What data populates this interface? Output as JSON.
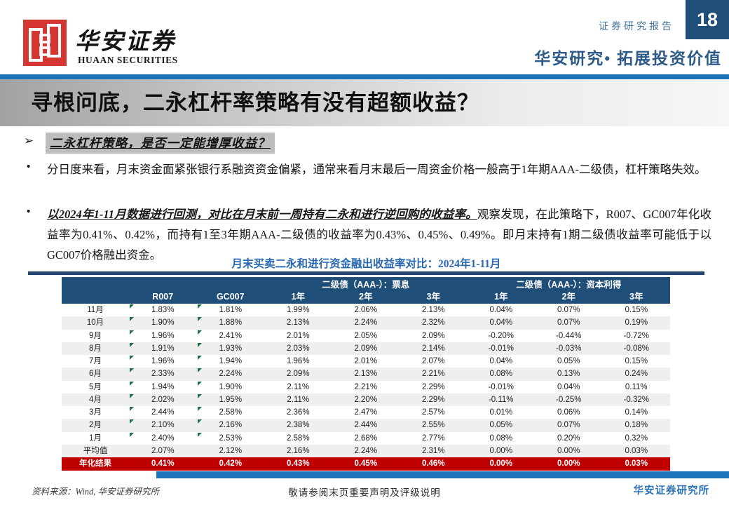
{
  "header": {
    "logo_cn": "华安证券",
    "logo_en": "HUAAN SECURITIES",
    "report_type": "证券研究报告",
    "page_number": "18",
    "slogan": "华安研究• 拓展投资价值"
  },
  "title": "寻根问底，二永杠杆率策略有没有超额收益？",
  "content": {
    "arrow": "➢",
    "bullet_dot": "•",
    "section_heading": "二永杠杆策略，是否一定能增厚收益？",
    "bullet1": "分日度来看，月末资金面紧张银行系融资资金偏紧，通常来看月末最后一周资金价格一般高于1年期AAA-二级债，杠杆策略失效。",
    "bullet2_emphasis": "以2024年1-11月数据进行回测，对比在月末前一周持有二永和进行逆回购的收益率。",
    "bullet2_rest": "观察发现，在此策略下，R007、GC007年化收益率为0.41%、0.42%，而持有1至3年期AAA-二级债的收益率为0.43%、0.45%、0.49%。即月末持有1期二级债收益率可能低于以GC007价格融出资金。"
  },
  "chart_title": "月末买卖二永和进行资金融出收益率对比：2024年1-11月",
  "table": {
    "group_headers": [
      "二级债（AAA-）：票息",
      "二级债（AAA-）：资本利得"
    ],
    "col_headers": [
      "",
      "R007",
      "GC007",
      "1年",
      "2年",
      "3年",
      "1年",
      "2年",
      "3年"
    ],
    "rows": [
      {
        "label": "11月",
        "values": [
          "1.83%",
          "1.81%",
          "1.99%",
          "2.06%",
          "2.13%",
          "0.04%",
          "0.07%",
          "0.15%"
        ]
      },
      {
        "label": "10月",
        "values": [
          "1.90%",
          "1.88%",
          "2.13%",
          "2.24%",
          "2.32%",
          "0.04%",
          "0.07%",
          "0.19%"
        ]
      },
      {
        "label": "9月",
        "values": [
          "1.96%",
          "2.41%",
          "2.01%",
          "2.05%",
          "2.09%",
          "-0.20%",
          "-0.44%",
          "-0.72%"
        ]
      },
      {
        "label": "8月",
        "values": [
          "1.91%",
          "1.93%",
          "2.03%",
          "2.09%",
          "2.14%",
          "-0.01%",
          "-0.03%",
          "-0.08%"
        ]
      },
      {
        "label": "7月",
        "values": [
          "1.96%",
          "1.94%",
          "1.96%",
          "2.01%",
          "2.07%",
          "0.04%",
          "0.05%",
          "0.15%"
        ]
      },
      {
        "label": "6月",
        "values": [
          "2.33%",
          "2.24%",
          "2.09%",
          "2.13%",
          "2.21%",
          "0.08%",
          "0.13%",
          "0.24%"
        ]
      },
      {
        "label": "5月",
        "values": [
          "1.94%",
          "1.90%",
          "2.11%",
          "2.21%",
          "2.29%",
          "-0.01%",
          "0.04%",
          "0.11%"
        ]
      },
      {
        "label": "4月",
        "values": [
          "2.02%",
          "1.95%",
          "2.11%",
          "2.20%",
          "2.29%",
          "-0.11%",
          "-0.25%",
          "-0.32%"
        ]
      },
      {
        "label": "3月",
        "values": [
          "2.44%",
          "2.58%",
          "2.36%",
          "2.47%",
          "2.57%",
          "0.01%",
          "0.06%",
          "0.14%"
        ]
      },
      {
        "label": "2月",
        "values": [
          "2.10%",
          "2.16%",
          "2.38%",
          "2.44%",
          "2.55%",
          "0.05%",
          "0.07%",
          "0.18%"
        ]
      },
      {
        "label": "1月",
        "values": [
          "2.40%",
          "2.53%",
          "2.58%",
          "2.68%",
          "2.77%",
          "0.08%",
          "0.20%",
          "0.32%"
        ]
      }
    ],
    "avg_row": {
      "label": "平均值",
      "values": [
        "2.07%",
        "2.12%",
        "2.16%",
        "2.24%",
        "2.31%",
        "0.00%",
        "0.00%",
        "0.03%"
      ]
    },
    "annual_row": {
      "label": "年化结果",
      "values": [
        "0.41%",
        "0.42%",
        "0.43%",
        "0.45%",
        "0.46%",
        "0.00%",
        "0.00%",
        "0.03%"
      ]
    }
  },
  "footer": {
    "source": "资料来源：Wind, 华安证券研究所",
    "disclaimer": "敬请参阅末页重要声明及评级说明",
    "institute": "华安证券研究所"
  },
  "colors": {
    "navy": "#1F4E79",
    "accent_blue": "#1E74B8",
    "title_blue": "#2968B0",
    "red_row": "#C00000",
    "seal_red": "#D63632",
    "stripe_gray": "#EFEFEF",
    "flag_green": "#1E7145"
  }
}
